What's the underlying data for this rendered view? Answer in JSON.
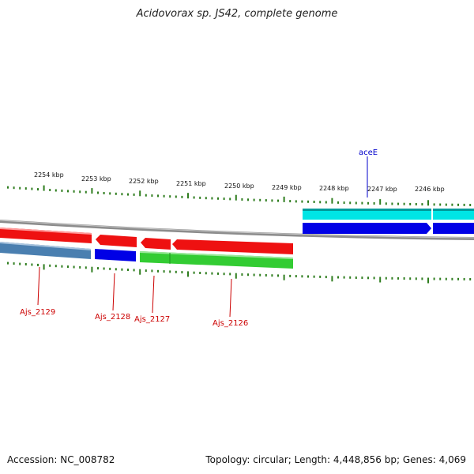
{
  "title": "Acidovorax sp. JS42, complete genome",
  "footer": {
    "accession_label": "Accession:",
    "accession": "NC_008782",
    "topology_label": "Topology:",
    "topology": "circular",
    "length_label": "Length:",
    "length": "4,448,856 bp",
    "genes_label": "Genes:",
    "genes": "4,069"
  },
  "scale": {
    "labels": [
      "2254 kbp",
      "2253 kbp",
      "2252 kbp",
      "2251 kbp",
      "2250 kbp",
      "2249 kbp",
      "2248 kbp",
      "2247 kbp",
      "2246 kbp"
    ]
  },
  "colors": {
    "backbone": "#8c8c8c",
    "tick": "#2e7d1e",
    "forward_gene": "#0000e6",
    "forward_gene_light": "#00e5e5",
    "reverse_gene": "#ee1111",
    "cds_blue": "#4a7fb0",
    "cds_green": "#33cc33",
    "label_red": "#cc0000",
    "label_blue": "#0000cc"
  },
  "genes": [
    {
      "name": "aceE",
      "strand": "+",
      "track": "cyan",
      "label_color": "label_blue"
    },
    {
      "name": "Ajs_2129",
      "strand": "-",
      "track": "red",
      "label_color": "label_red"
    },
    {
      "name": "Ajs_2128",
      "strand": "-",
      "track": "red",
      "label_color": "label_red"
    },
    {
      "name": "Ajs_2127",
      "strand": "-",
      "track": "red",
      "label_color": "label_red"
    },
    {
      "name": "Ajs_2126",
      "strand": "-",
      "track": "red",
      "label_color": "label_red"
    }
  ]
}
